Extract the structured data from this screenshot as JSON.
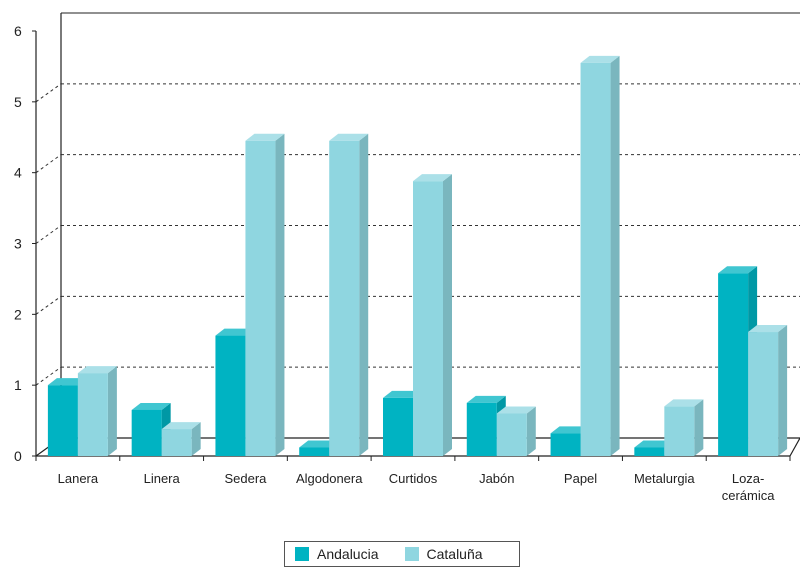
{
  "chart_data": {
    "type": "bar",
    "categories": [
      "Lanera",
      "Linera",
      "Sedera",
      "Algodonera",
      "Curtidos",
      "Jabón",
      "Papel",
      "Metalurgia",
      [
        "Loza-",
        "cerámica"
      ]
    ],
    "series": [
      {
        "name": "Andalucia",
        "values": [
          1.0,
          0.65,
          1.7,
          0.12,
          0.82,
          0.75,
          0.32,
          0.12,
          2.58
        ],
        "color": "#00b3c2"
      },
      {
        "name": "Cataluña",
        "values": [
          1.17,
          0.38,
          4.45,
          4.45,
          3.88,
          0.6,
          5.55,
          0.7,
          1.75
        ],
        "color": "#8fd6e0"
      }
    ],
    "ylim": [
      0,
      6
    ],
    "yticks": [
      "0",
      "1",
      "2",
      "3",
      "4",
      "5",
      "6"
    ],
    "grid": true,
    "legend_position": "bottom"
  }
}
